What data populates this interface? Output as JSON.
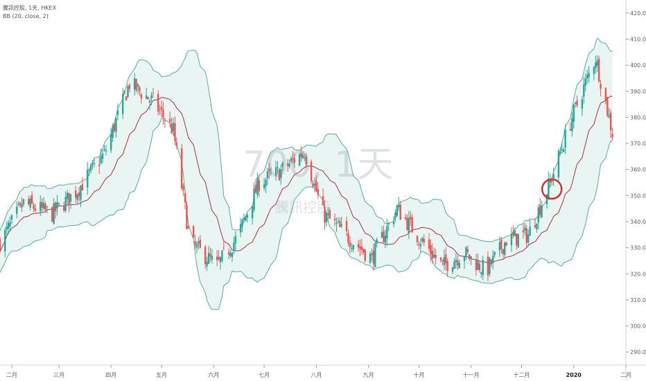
{
  "legend": {
    "symbol_line": "騰訊控股, 1天, HKEX",
    "indicator_line": "BB (20, close, 2)"
  },
  "watermark": {
    "symbol": "700, 1天",
    "name": "騰訊控股"
  },
  "colors": {
    "up": "#26a69a",
    "down": "#ef5350",
    "basis": "#ab2f3f",
    "band": "#56ab9b",
    "band_fill": "#e8f5f3",
    "highlight": "#d32f2f"
  },
  "chart_data": {
    "type": "candlestick",
    "title": "騰訊控股, 1天, HKEX",
    "indicator": "BB (20, close, 2)",
    "ylim": [
      285,
      425
    ],
    "y_ticks": [
      290,
      300,
      310,
      320,
      330,
      340,
      350,
      360,
      370,
      380,
      390,
      400,
      410,
      420
    ],
    "y_tick_labels": [
      "290.0",
      "300.0",
      "310.0",
      "320.0",
      "330.0",
      "340.0",
      "350.0",
      "360.0",
      "370.0",
      "380.0",
      "390.0",
      "400.0",
      "410.0",
      "420.0"
    ],
    "x_range": [
      "2019-01-25",
      "2020-02-01"
    ],
    "x_ticks": [
      {
        "label": "二月",
        "date": "2019-02-01"
      },
      {
        "label": "三月",
        "date": "2019-03-01"
      },
      {
        "label": "四月",
        "date": "2019-04-01"
      },
      {
        "label": "五月",
        "date": "2019-05-01"
      },
      {
        "label": "六月",
        "date": "2019-06-01"
      },
      {
        "label": "七月",
        "date": "2019-07-01"
      },
      {
        "label": "八月",
        "date": "2019-08-01"
      },
      {
        "label": "九月",
        "date": "2019-09-01"
      },
      {
        "label": "十月",
        "date": "2019-10-01"
      },
      {
        "label": "十一月",
        "date": "2019-11-01"
      },
      {
        "label": "十二月",
        "date": "2019-12-01"
      },
      {
        "label": "2020",
        "date": "2020-01-01",
        "bold": true
      },
      {
        "label": "二月",
        "date": "2020-02-01"
      }
    ],
    "anchors": [
      {
        "date": "2019-01-25",
        "price": 332
      },
      {
        "date": "2019-02-08",
        "price": 347
      },
      {
        "date": "2019-02-25",
        "price": 343
      },
      {
        "date": "2019-03-12",
        "price": 352
      },
      {
        "date": "2019-03-28",
        "price": 366
      },
      {
        "date": "2019-04-12",
        "price": 393
      },
      {
        "date": "2019-04-26",
        "price": 386
      },
      {
        "date": "2019-05-08",
        "price": 375
      },
      {
        "date": "2019-05-18",
        "price": 332
      },
      {
        "date": "2019-06-03",
        "price": 323
      },
      {
        "date": "2019-06-15",
        "price": 334
      },
      {
        "date": "2019-06-28",
        "price": 355
      },
      {
        "date": "2019-07-10",
        "price": 359
      },
      {
        "date": "2019-07-25",
        "price": 367
      },
      {
        "date": "2019-08-05",
        "price": 343
      },
      {
        "date": "2019-08-20",
        "price": 334
      },
      {
        "date": "2019-09-03",
        "price": 326
      },
      {
        "date": "2019-09-18",
        "price": 345
      },
      {
        "date": "2019-10-01",
        "price": 334
      },
      {
        "date": "2019-10-15",
        "price": 323
      },
      {
        "date": "2019-10-28",
        "price": 328
      },
      {
        "date": "2019-11-10",
        "price": 321
      },
      {
        "date": "2019-11-22",
        "price": 333
      },
      {
        "date": "2019-12-05",
        "price": 335
      },
      {
        "date": "2019-12-18",
        "price": 355
      },
      {
        "date": "2019-12-31",
        "price": 380
      },
      {
        "date": "2020-01-14",
        "price": 403
      },
      {
        "date": "2020-01-24",
        "price": 374
      }
    ],
    "highlight": {
      "date": "2019-12-19",
      "price": 352.5,
      "shape": "circle"
    }
  }
}
